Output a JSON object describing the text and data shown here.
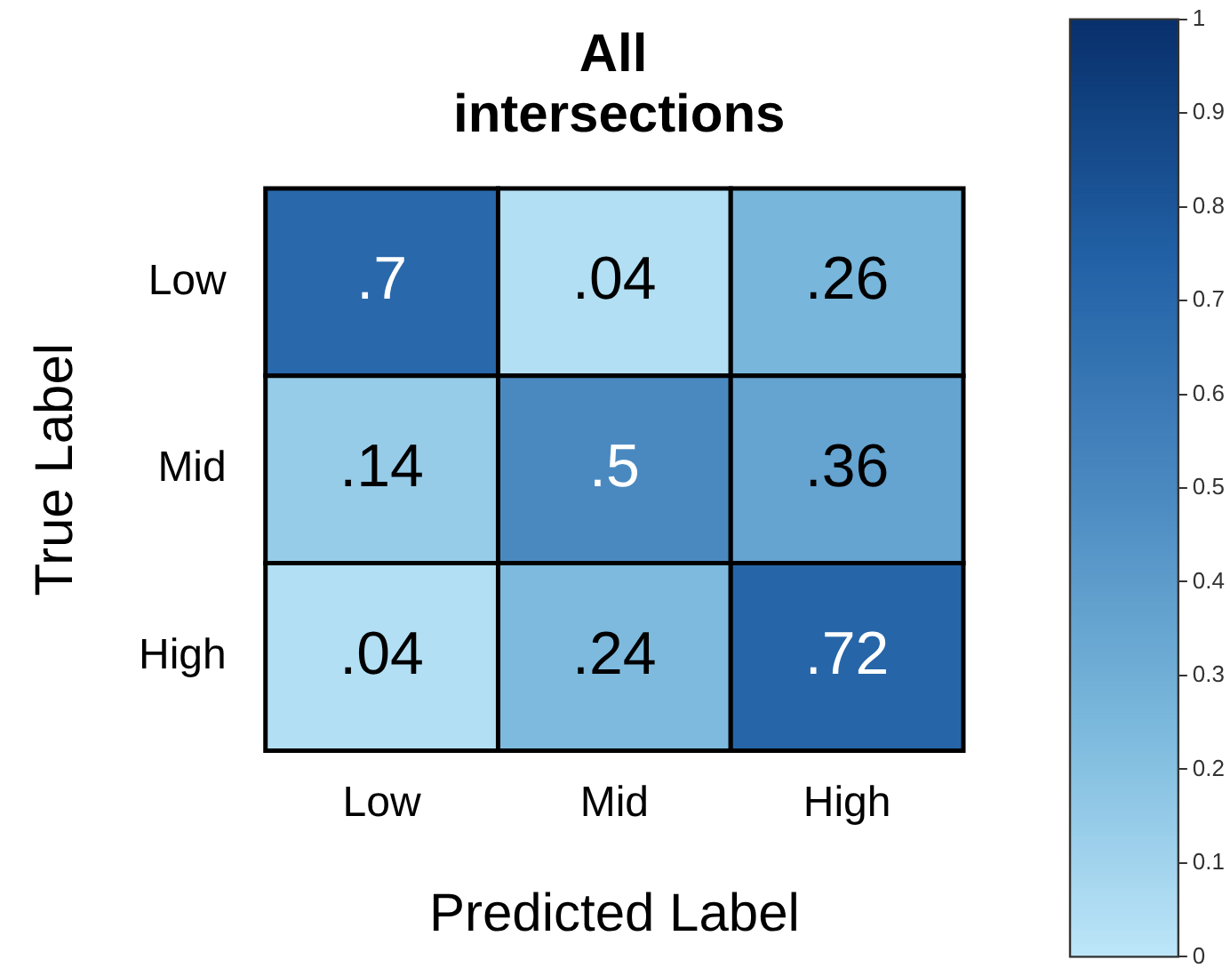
{
  "chart_data": {
    "type": "heatmap",
    "title": "All intersections",
    "xlabel": "Predicted Label",
    "ylabel": "True Label",
    "categories": [
      "Low",
      "Mid",
      "High"
    ],
    "y_categories": [
      "Low",
      "Mid",
      "High"
    ],
    "cells": [
      [
        0.7,
        0.04,
        0.26
      ],
      [
        0.14,
        0.5,
        0.36
      ],
      [
        0.04,
        0.24,
        0.72
      ]
    ],
    "cell_labels": [
      [
        ".7",
        ".04",
        ".26"
      ],
      [
        ".14",
        ".5",
        ".36"
      ],
      [
        ".04",
        ".24",
        ".72"
      ]
    ],
    "clim": [
      0,
      1
    ],
    "cticks": [
      0,
      0.1,
      0.2,
      0.3,
      0.4,
      0.5,
      0.6,
      0.7,
      0.8,
      0.9,
      1
    ]
  }
}
